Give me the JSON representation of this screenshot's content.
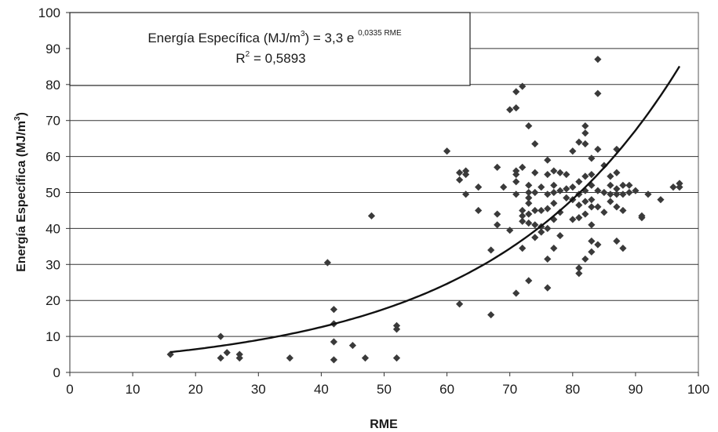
{
  "chart_data": {
    "type": "scatter",
    "xlabel": "RME",
    "ylabel_main": "Energía Específica (MJ/m",
    "ylabel_sup": "3",
    "ylabel_close": ")",
    "xlim": [
      0,
      100
    ],
    "ylim": [
      0,
      100
    ],
    "xticks": [
      "0",
      "10",
      "20",
      "30",
      "40",
      "50",
      "60",
      "70",
      "80",
      "90",
      "100"
    ],
    "yticks": [
      "0",
      "10",
      "20",
      "30",
      "40",
      "50",
      "60",
      "70",
      "80",
      "90",
      "100"
    ],
    "grid": "horizontal",
    "annotation": {
      "line1_prefix": "Energía Específica (MJ/m",
      "line1_sup": "3",
      "line1_mid": ") = 3,3 e ",
      "line1_exp": "0,0335 RME",
      "line2_prefix": "R",
      "line2_sup": "2",
      "line2_suffix": " = 0,5893"
    },
    "trendline": {
      "type": "exponential",
      "a": 3.3,
      "b": 0.0335,
      "x_range": [
        16,
        97
      ]
    },
    "points": [
      [
        16,
        5
      ],
      [
        24,
        10
      ],
      [
        24,
        4
      ],
      [
        25,
        5.5
      ],
      [
        27,
        5
      ],
      [
        27,
        4
      ],
      [
        35,
        4
      ],
      [
        41,
        30.5
      ],
      [
        42,
        17.5
      ],
      [
        42,
        13.5
      ],
      [
        42,
        8.5
      ],
      [
        42,
        3.5
      ],
      [
        45,
        7.5
      ],
      [
        47,
        4
      ],
      [
        48,
        43.5
      ],
      [
        52,
        13
      ],
      [
        52,
        12
      ],
      [
        52,
        4
      ],
      [
        60,
        61.5
      ],
      [
        62,
        55.5
      ],
      [
        62,
        53.5
      ],
      [
        62,
        19
      ],
      [
        63,
        56
      ],
      [
        63,
        55
      ],
      [
        63,
        49.5
      ],
      [
        65,
        51.5
      ],
      [
        65,
        45
      ],
      [
        67,
        34
      ],
      [
        67,
        16
      ],
      [
        68,
        57
      ],
      [
        68,
        44
      ],
      [
        68,
        41
      ],
      [
        69,
        51.5
      ],
      [
        70,
        73
      ],
      [
        70,
        39.5
      ],
      [
        71,
        78
      ],
      [
        71,
        73.5
      ],
      [
        71,
        56
      ],
      [
        71,
        55
      ],
      [
        71,
        53
      ],
      [
        71,
        49.5
      ],
      [
        71,
        22
      ],
      [
        72,
        79.5
      ],
      [
        72,
        57
      ],
      [
        72,
        45
      ],
      [
        72,
        43.5
      ],
      [
        72,
        42
      ],
      [
        72,
        34.5
      ],
      [
        73,
        68.5
      ],
      [
        73,
        52
      ],
      [
        73,
        50
      ],
      [
        73,
        48.5
      ],
      [
        73,
        47
      ],
      [
        73,
        44
      ],
      [
        73,
        41.5
      ],
      [
        73,
        25.5
      ],
      [
        74,
        63.5
      ],
      [
        74,
        55.5
      ],
      [
        74,
        50
      ],
      [
        74,
        45
      ],
      [
        74,
        41
      ],
      [
        74,
        37.5
      ],
      [
        75,
        51.5
      ],
      [
        75,
        45
      ],
      [
        75,
        40.5
      ],
      [
        75,
        39
      ],
      [
        76,
        59
      ],
      [
        76,
        55
      ],
      [
        76,
        49.5
      ],
      [
        76,
        45.5
      ],
      [
        76,
        40
      ],
      [
        76,
        31.5
      ],
      [
        76,
        23.5
      ],
      [
        77,
        56
      ],
      [
        77,
        52
      ],
      [
        77,
        50
      ],
      [
        77,
        47
      ],
      [
        77,
        42.5
      ],
      [
        77,
        34.5
      ],
      [
        78,
        55.5
      ],
      [
        78,
        50.5
      ],
      [
        78,
        44.5
      ],
      [
        78,
        38
      ],
      [
        79,
        55
      ],
      [
        79,
        51
      ],
      [
        79,
        48.5
      ],
      [
        80,
        61.5
      ],
      [
        80,
        51.5
      ],
      [
        80,
        48
      ],
      [
        80,
        42.5
      ],
      [
        81,
        64
      ],
      [
        81,
        53
      ],
      [
        81,
        49.5
      ],
      [
        81,
        46.5
      ],
      [
        81,
        43
      ],
      [
        81,
        29
      ],
      [
        81,
        27.5
      ],
      [
        82,
        68.5
      ],
      [
        82,
        66.5
      ],
      [
        82,
        63.5
      ],
      [
        82,
        54.5
      ],
      [
        82,
        50.5
      ],
      [
        82,
        47.5
      ],
      [
        82,
        44
      ],
      [
        82,
        31.5
      ],
      [
        83,
        59.5
      ],
      [
        83,
        55
      ],
      [
        83,
        52
      ],
      [
        83,
        48
      ],
      [
        83,
        46
      ],
      [
        83,
        41
      ],
      [
        83,
        36.5
      ],
      [
        83,
        33.5
      ],
      [
        84,
        87
      ],
      [
        84,
        77.5
      ],
      [
        84,
        62
      ],
      [
        84,
        50.5
      ],
      [
        84,
        46
      ],
      [
        84,
        35.5
      ],
      [
        85,
        57.5
      ],
      [
        85,
        50
      ],
      [
        85,
        44.5
      ],
      [
        86,
        54.5
      ],
      [
        86,
        52
      ],
      [
        86,
        49.5
      ],
      [
        86,
        47.5
      ],
      [
        87,
        62
      ],
      [
        87,
        55.5
      ],
      [
        87,
        51
      ],
      [
        87,
        49.5
      ],
      [
        87,
        46
      ],
      [
        87,
        36.5
      ],
      [
        88,
        52
      ],
      [
        88,
        49.5
      ],
      [
        88,
        45
      ],
      [
        88,
        34.5
      ],
      [
        89,
        52
      ],
      [
        89,
        50
      ],
      [
        90,
        50.5
      ],
      [
        91,
        43.5
      ],
      [
        91,
        43
      ],
      [
        92,
        49.5
      ],
      [
        94,
        48
      ],
      [
        96,
        51.5
      ],
      [
        97,
        52.5
      ],
      [
        97,
        51.5
      ]
    ]
  }
}
